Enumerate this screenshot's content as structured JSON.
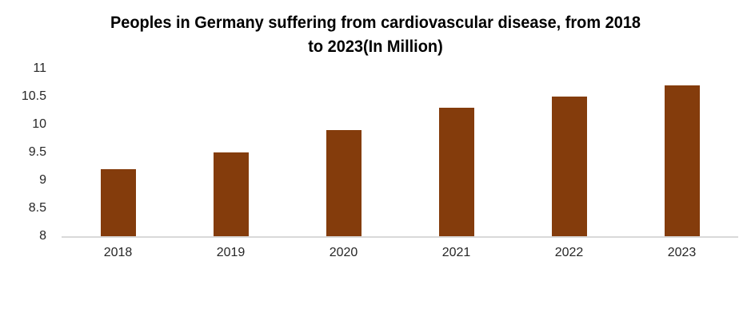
{
  "chart_data": {
    "type": "bar",
    "title": "Peoples in Germany suffering from cardiovascular disease, from 2018 to 2023(In Million)",
    "title_lines": [
      "Peoples in Germany suffering from cardiovascular disease, from 2018",
      "to 2023(In Million)"
    ],
    "categories": [
      "2018",
      "2019",
      "2020",
      "2021",
      "2022",
      "2023"
    ],
    "values": [
      9.2,
      9.5,
      9.9,
      10.3,
      10.5,
      10.7
    ],
    "xlabel": "",
    "ylabel": "",
    "ylim": [
      8,
      11
    ],
    "yticks": [
      11,
      10.5,
      10,
      9.5,
      9,
      8.5,
      8
    ],
    "grid": false,
    "legend_position": "none",
    "colors": {
      "bar": "#843C0C",
      "axis_line": "#D9D9D9",
      "axis_text": "#262626",
      "title_text": "#000000",
      "background": "#FFFFFF"
    }
  }
}
